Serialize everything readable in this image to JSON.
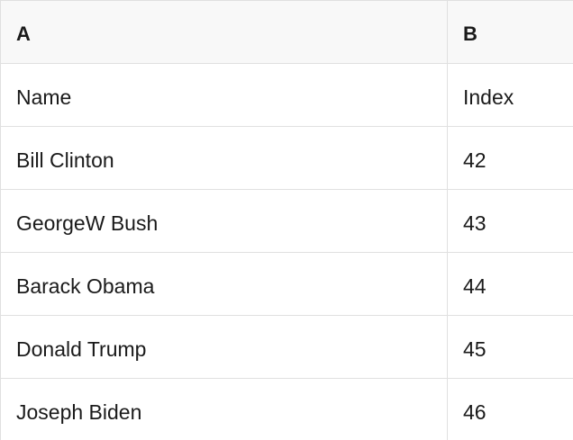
{
  "table": {
    "columns": [
      {
        "label": "A"
      },
      {
        "label": "B"
      }
    ],
    "rows": [
      [
        "Name",
        "Index"
      ],
      [
        "Bill Clinton",
        "42"
      ],
      [
        "GeorgeW Bush",
        "43"
      ],
      [
        "Barack Obama",
        "44"
      ],
      [
        "Donald Trump",
        "45"
      ],
      [
        "Joseph Biden",
        "46"
      ]
    ]
  },
  "colors": {
    "header_bg": "#f8f8f8",
    "cell_bg": "#ffffff",
    "border": "#e0e0e0",
    "text": "#1a1a1a"
  }
}
